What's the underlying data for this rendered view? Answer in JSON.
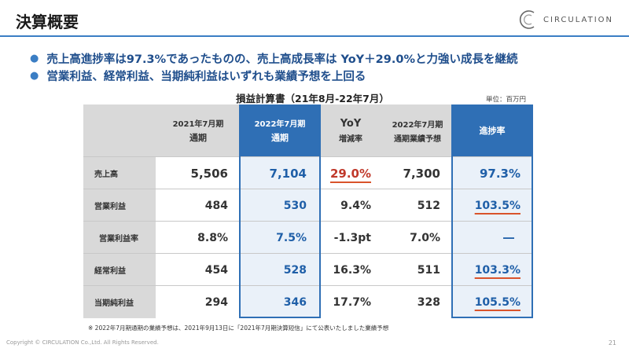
{
  "header": {
    "title": "決算概要",
    "logo_text": "CIRCULATION"
  },
  "bullets": [
    "売上高進捗率は97.3%であったものの、売上高成長率は YoY＋29.0%と力強い成長を継続",
    "営業利益、経常利益、当期純利益はいずれも業績予想を上回る"
  ],
  "table": {
    "title": "損益計算書（21年8月-22年7月）",
    "unit": "単位：百万円",
    "headers": {
      "col1": [
        "2021年7月期",
        "通期"
      ],
      "col2": [
        "2022年7月期",
        "通期"
      ],
      "col3": [
        "YoY",
        "増減率"
      ],
      "col4": [
        "2022年7月期",
        "通期業績予想"
      ],
      "col5": [
        "進捗率"
      ]
    },
    "rows": [
      {
        "label": "売上高",
        "v1": "5,506",
        "v2": "7,104",
        "v3": "29.0%",
        "v4": "7,300",
        "v5": "97.3%"
      },
      {
        "label": "営業利益",
        "v1": "484",
        "v2": "530",
        "v3": "9.4%",
        "v4": "512",
        "v5": "103.5%"
      },
      {
        "label": "営業利益率",
        "v1": "8.8%",
        "v2": "7.5%",
        "v3": "-1.3pt",
        "v4": "7.0%",
        "v5": "―"
      },
      {
        "label": "経常利益",
        "v1": "454",
        "v2": "528",
        "v3": "16.3%",
        "v4": "511",
        "v5": "103.3%"
      },
      {
        "label": "当期純利益",
        "v1": "294",
        "v2": "346",
        "v3": "17.7%",
        "v4": "328",
        "v5": "105.5%"
      }
    ]
  },
  "footnote": "※ 2022年7月期通期の業績予想は、2021年9月13日に「2021年7月期決算短信」にて公表いたしました業績予想",
  "footer": {
    "copyright": "Copyright © CIRCULATION Co.,Ltd. All Rights Reserved.",
    "page": "21"
  },
  "colors": {
    "accent": "#2f6fb5",
    "underline": "#d9532b",
    "header_gray": "#d9d9d9"
  }
}
